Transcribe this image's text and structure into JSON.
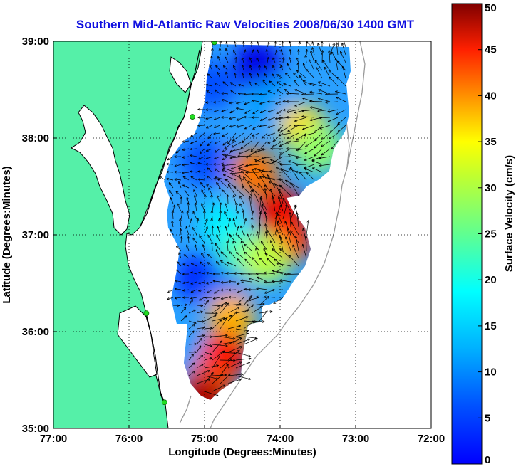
{
  "title": "Southern Mid-Atlantic Raw Velocities 2008/06/30 1400 GMT",
  "map": {
    "x_label": "Longitude (Degrees:Minutes)",
    "y_label": "Latitude (Degrees:Minutes)",
    "lon_range": [
      -77,
      -72
    ],
    "lat_range": [
      35,
      39
    ],
    "x_ticks": [
      {
        "value": -77,
        "label": "77:00"
      },
      {
        "value": -76,
        "label": "76:00"
      },
      {
        "value": -75,
        "label": "75:00"
      },
      {
        "value": -74,
        "label": "74:00"
      },
      {
        "value": -73,
        "label": "73:00"
      },
      {
        "value": -72,
        "label": "72:00"
      }
    ],
    "y_ticks": [
      {
        "value": 39,
        "label": "39:00"
      },
      {
        "value": 38,
        "label": "38:00"
      },
      {
        "value": 37,
        "label": "37:00"
      },
      {
        "value": 36,
        "label": "36:00"
      },
      {
        "value": 35,
        "label": "35:00"
      }
    ],
    "grid": "dotted",
    "land_color": "#55f0a8",
    "coast_color": "#000000",
    "isobath_color": "#9a9a9a",
    "station_color": "#22dd22",
    "stations": [
      {
        "lon": -74.87,
        "lat": 38.99
      },
      {
        "lon": -75.16,
        "lat": 38.22
      },
      {
        "lon": -75.77,
        "lat": 36.19
      },
      {
        "lon": -75.53,
        "lat": 35.27
      }
    ]
  },
  "colorbar": {
    "label": "Surface Velocity (cm/s)",
    "min": 0,
    "max": 50,
    "ticks": [
      "0",
      "5",
      "10",
      "15",
      "20",
      "25",
      "30",
      "35",
      "40",
      "45",
      "50"
    ],
    "colormap": "jet"
  },
  "chart_data": {
    "type": "heatmap",
    "title": "Southern Mid-Atlantic Raw Velocities 2008/06/30 1400 GMT",
    "xlabel": "Longitude (Degrees:Minutes)",
    "ylabel": "Latitude (Degrees:Minutes)",
    "xlim": [
      -77,
      -72
    ],
    "ylim": [
      35,
      39
    ],
    "value_label": "Surface Velocity (cm/s)",
    "value_range": [
      0,
      50
    ],
    "speed_regions": [
      {
        "lon": -74.3,
        "lat": 38.75,
        "speed": 5
      },
      {
        "lon": -74.9,
        "lat": 38.55,
        "speed": 10
      },
      {
        "lon": -74.1,
        "lat": 38.35,
        "speed": 14
      },
      {
        "lon": -73.7,
        "lat": 38.1,
        "speed": 33
      },
      {
        "lon": -73.5,
        "lat": 37.9,
        "speed": 26
      },
      {
        "lon": -75.0,
        "lat": 37.75,
        "speed": 10
      },
      {
        "lon": -74.35,
        "lat": 37.65,
        "speed": 38
      },
      {
        "lon": -74.0,
        "lat": 37.25,
        "speed": 45
      },
      {
        "lon": -73.9,
        "lat": 36.95,
        "speed": 42
      },
      {
        "lon": -74.75,
        "lat": 37.1,
        "speed": 18
      },
      {
        "lon": -74.5,
        "lat": 36.8,
        "speed": 22
      },
      {
        "lon": -74.2,
        "lat": 36.75,
        "speed": 28
      },
      {
        "lon": -75.05,
        "lat": 36.55,
        "speed": 8
      },
      {
        "lon": -74.7,
        "lat": 36.4,
        "speed": 12
      },
      {
        "lon": -74.65,
        "lat": 36.15,
        "speed": 35
      },
      {
        "lon": -75.2,
        "lat": 35.8,
        "speed": 14
      },
      {
        "lon": -74.75,
        "lat": 35.75,
        "speed": 44
      },
      {
        "lon": -74.95,
        "lat": 35.45,
        "speed": 40
      },
      {
        "lon": -75.05,
        "lat": 35.3,
        "speed": 48
      }
    ]
  }
}
